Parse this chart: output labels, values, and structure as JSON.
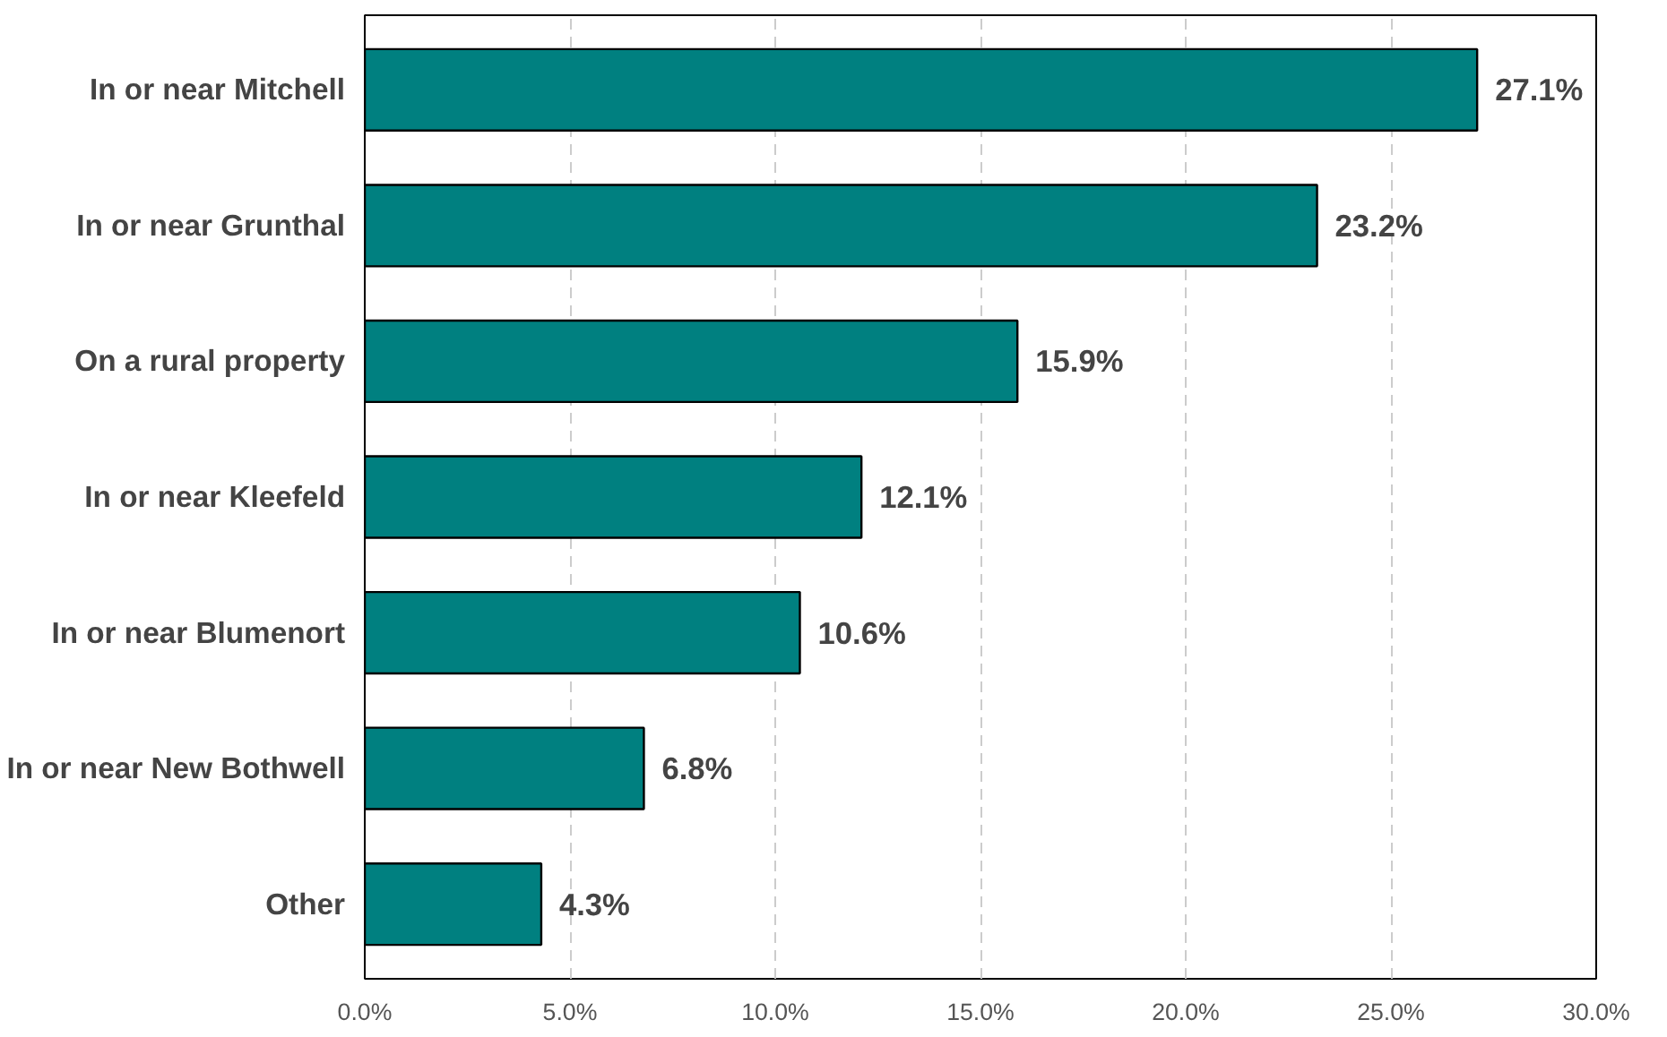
{
  "chart_data": {
    "type": "bar",
    "orientation": "horizontal",
    "categories": [
      "In or near Mitchell",
      "In or near Grunthal",
      "On a rural property",
      "In or near Kleefeld",
      "In or near Blumenort",
      "In or near New Bothwell",
      "Other"
    ],
    "values": [
      27.1,
      23.2,
      15.9,
      12.1,
      10.6,
      6.8,
      4.3
    ],
    "value_labels": [
      "27.1%",
      "23.2%",
      "15.9%",
      "12.1%",
      "10.6%",
      "6.8%",
      "4.3%"
    ],
    "color": "#008080",
    "xlim": [
      0,
      30
    ],
    "xticks": [
      {
        "value": 0,
        "label": "0.0%"
      },
      {
        "value": 5,
        "label": "5.0%"
      },
      {
        "value": 10,
        "label": "10.0%"
      },
      {
        "value": 15,
        "label": "15.0%"
      },
      {
        "value": 20,
        "label": "20.0%"
      },
      {
        "value": 25,
        "label": "25.0%"
      },
      {
        "value": 30,
        "label": "30.0%"
      }
    ],
    "grid": "x"
  }
}
